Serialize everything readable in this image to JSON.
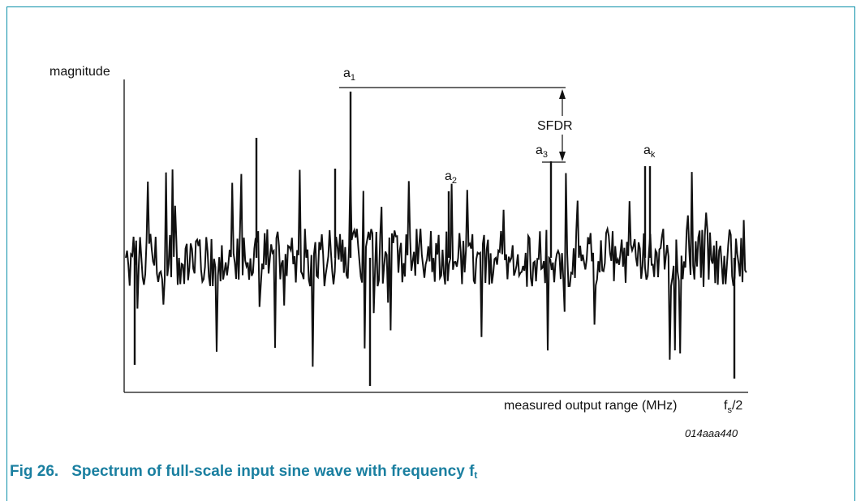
{
  "figure": {
    "number": "Fig 26.",
    "title": "Spectrum of full-scale input sine wave with frequency f",
    "title_subscript": "t",
    "id_code": "014aaa440",
    "accent_color": "#1a7fa0",
    "border_color": "#0a8fa8"
  },
  "chart_data": {
    "type": "line",
    "ylabel": "magnitude",
    "xlabel": "measured output range (MHz)",
    "xaxis_end_label": {
      "main": "f",
      "sub": "s",
      "suffix": "/2"
    },
    "grid": false,
    "ticks": false,
    "annotations": [
      {
        "main": "a",
        "sub": "1"
      },
      {
        "main": "a",
        "sub": "2"
      },
      {
        "main": "a",
        "sub": "3"
      },
      {
        "main": "a",
        "sub": "k"
      },
      {
        "main": "SFDR"
      }
    ]
  }
}
